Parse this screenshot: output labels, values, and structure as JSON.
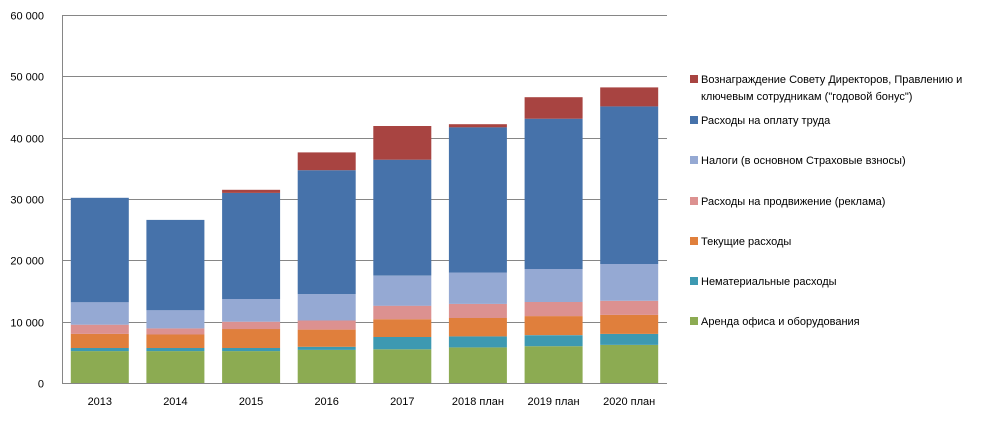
{
  "chart_data": {
    "type": "bar",
    "stacked": true,
    "categories": [
      "2013",
      "2014",
      "2015",
      "2016",
      "2017",
      "2018 план",
      "2019 план",
      "2020 план"
    ],
    "ylim": [
      0,
      60000
    ],
    "yticks": [
      0,
      10000,
      20000,
      30000,
      40000,
      50000,
      60000
    ],
    "ytick_labels": [
      "0",
      "10 000",
      "20 000",
      "30 000",
      "40 000",
      "50 000",
      "60 000"
    ],
    "grid": true,
    "legend_position": "right",
    "series": [
      {
        "name": "Аренда офиса и оборудования",
        "color": "#8cab52",
        "values": [
          5200,
          5200,
          5200,
          5400,
          5500,
          5800,
          6000,
          6200
        ]
      },
      {
        "name": "Нематериальные расходы",
        "color": "#3d99b1",
        "values": [
          500,
          500,
          500,
          500,
          2000,
          1800,
          1800,
          1800
        ]
      },
      {
        "name": "Текущие расходы",
        "color": "#e07f3c",
        "values": [
          2300,
          2200,
          3100,
          2800,
          2900,
          3000,
          3100,
          3100
        ]
      },
      {
        "name": "Расходы на продвижение (реклама)",
        "color": "#dc9190",
        "values": [
          1500,
          1000,
          1200,
          1500,
          2200,
          2300,
          2300,
          2300
        ]
      },
      {
        "name": "Налоги (в основном Страховые взносы)",
        "color": "#95a9d3",
        "values": [
          3700,
          3000,
          3700,
          4300,
          4900,
          5100,
          5400,
          6000
        ]
      },
      {
        "name": "Расходы на оплату труда",
        "color": "#4672aa",
        "values": [
          17000,
          14700,
          17300,
          20200,
          18900,
          23700,
          24500,
          25700
        ]
      },
      {
        "name": "Вознаграждение Совету Директоров,  Правлению и ключевым  сотрудникам (\"годовой бонус\")",
        "legend_lines": [
          "Вознаграждение Совету Директоров,  Правлению и",
          "ключевым  сотрудникам (\"годовой бонус\")"
        ],
        "color": "#a84441",
        "values": [
          0,
          0,
          500,
          2900,
          5500,
          500,
          3500,
          3100
        ]
      }
    ]
  }
}
